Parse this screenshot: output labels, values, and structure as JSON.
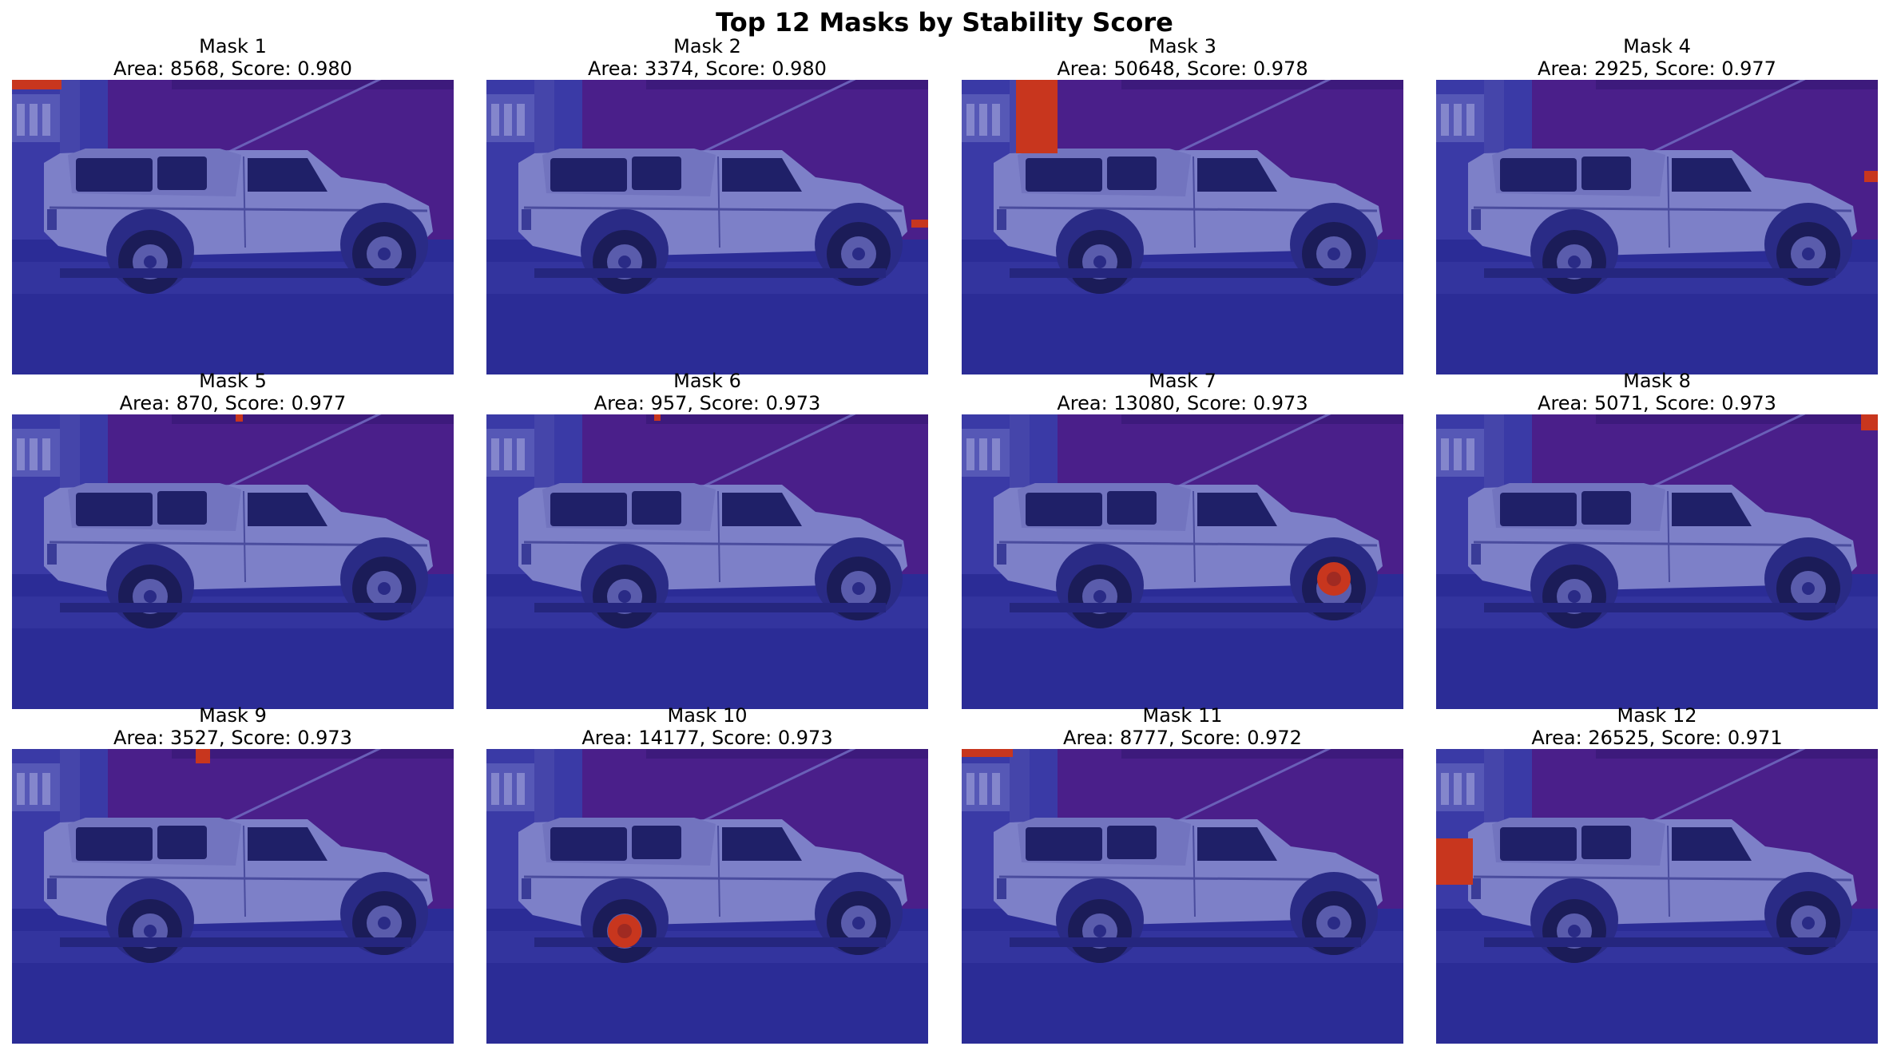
{
  "figure": {
    "title": "Top 12 Masks by Stability Score"
  },
  "colors": {
    "overlay_blue": "#2e2f9a",
    "mask_red": "#c8361e",
    "wall_purple": "#4a1f8a",
    "truck_body": "#7d80c8"
  },
  "masks": [
    {
      "title": "Mask 1",
      "subtitle": "Area: 8568, Score: 0.980"
    },
    {
      "title": "Mask 2",
      "subtitle": "Area: 3374, Score: 0.980"
    },
    {
      "title": "Mask 3",
      "subtitle": "Area: 50648, Score: 0.978"
    },
    {
      "title": "Mask 4",
      "subtitle": "Area: 2925, Score: 0.977"
    },
    {
      "title": "Mask 5",
      "subtitle": "Area: 870, Score: 0.977"
    },
    {
      "title": "Mask 6",
      "subtitle": "Area: 957, Score: 0.973"
    },
    {
      "title": "Mask 7",
      "subtitle": "Area: 13080, Score: 0.973"
    },
    {
      "title": "Mask 8",
      "subtitle": "Area: 5071, Score: 0.973"
    },
    {
      "title": "Mask 9",
      "subtitle": "Area: 3527, Score: 0.973"
    },
    {
      "title": "Mask 10",
      "subtitle": "Area: 14177, Score: 0.973"
    },
    {
      "title": "Mask 11",
      "subtitle": "Area: 8777, Score: 0.972"
    },
    {
      "title": "Mask 12",
      "subtitle": "Area: 26525, Score: 0.971"
    }
  ]
}
